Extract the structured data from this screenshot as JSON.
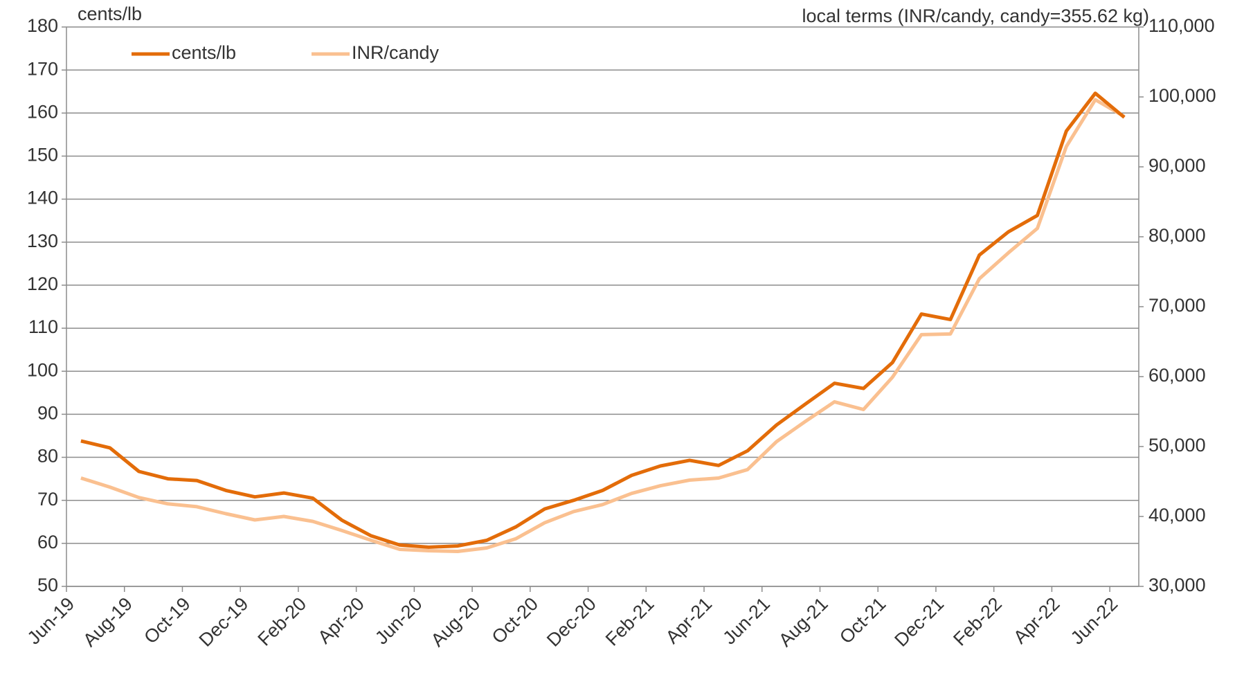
{
  "chart_data": {
    "type": "line",
    "y_label": "cents/lb",
    "y2_label": "local terms (INR/candy, candy=355.62 kg)",
    "categories": [
      "Jun-19",
      null,
      "Aug-19",
      null,
      "Oct-19",
      null,
      "Dec-19",
      null,
      "Feb-20",
      null,
      "Apr-20",
      null,
      "Jun-20",
      null,
      "Aug-20",
      null,
      "Oct-20",
      null,
      "Dec-20",
      null,
      "Feb-21",
      null,
      "Apr-21",
      null,
      "Jun-21",
      null,
      "Aug-21",
      null,
      "Oct-21",
      null,
      "Dec-21",
      null,
      "Feb-22",
      null,
      "Apr-22",
      null,
      "Jun-22"
    ],
    "series": [
      {
        "name": "cents/lb",
        "color": "#e36c09",
        "values": [
          83.8,
          82.2,
          76.7,
          75,
          74.6,
          72.3,
          70.8,
          71.7,
          70.5,
          65.4,
          61.8,
          59.6,
          59.1,
          59.4,
          60.7,
          63.8,
          68,
          70,
          72.3,
          75.8,
          78,
          79.3,
          78.1,
          81.5,
          87.5,
          92.4,
          97.2,
          96,
          102,
          113.3,
          112,
          127,
          132.4,
          136.2,
          155.8,
          164.6,
          159
        ]
      },
      {
        "name": "INR/candy",
        "color": "#fac090",
        "axis": "y2",
        "values": [
          45500,
          44200,
          42700,
          41800,
          41400,
          40400,
          39500,
          40000,
          39300,
          38000,
          36600,
          35300,
          35100,
          35000,
          35500,
          36800,
          39100,
          40700,
          41700,
          43300,
          44400,
          45200,
          45500,
          46700,
          50700,
          53600,
          56400,
          55300,
          59900,
          66000,
          66100,
          74000,
          77700,
          81200,
          92900,
          99600,
          97200
        ]
      }
    ],
    "ylim": [
      50,
      180
    ],
    "yticks": [
      50,
      60,
      70,
      80,
      90,
      100,
      110,
      120,
      130,
      140,
      150,
      160,
      170,
      180
    ],
    "y2lim": [
      30000,
      110000
    ],
    "y2ticks": [
      {
        "value": 30000,
        "label": "30,000"
      },
      {
        "value": 40000,
        "label": "40,000"
      },
      {
        "value": 50000,
        "label": "50,000"
      },
      {
        "value": 60000,
        "label": "60,000"
      },
      {
        "value": 70000,
        "label": "70,000"
      },
      {
        "value": 80000,
        "label": "80,000"
      },
      {
        "value": 90000,
        "label": "90,000"
      },
      {
        "value": 100000,
        "label": "100,000"
      },
      {
        "value": 110000,
        "label": "110,000"
      }
    ],
    "grid": true,
    "legend": "top-left"
  }
}
